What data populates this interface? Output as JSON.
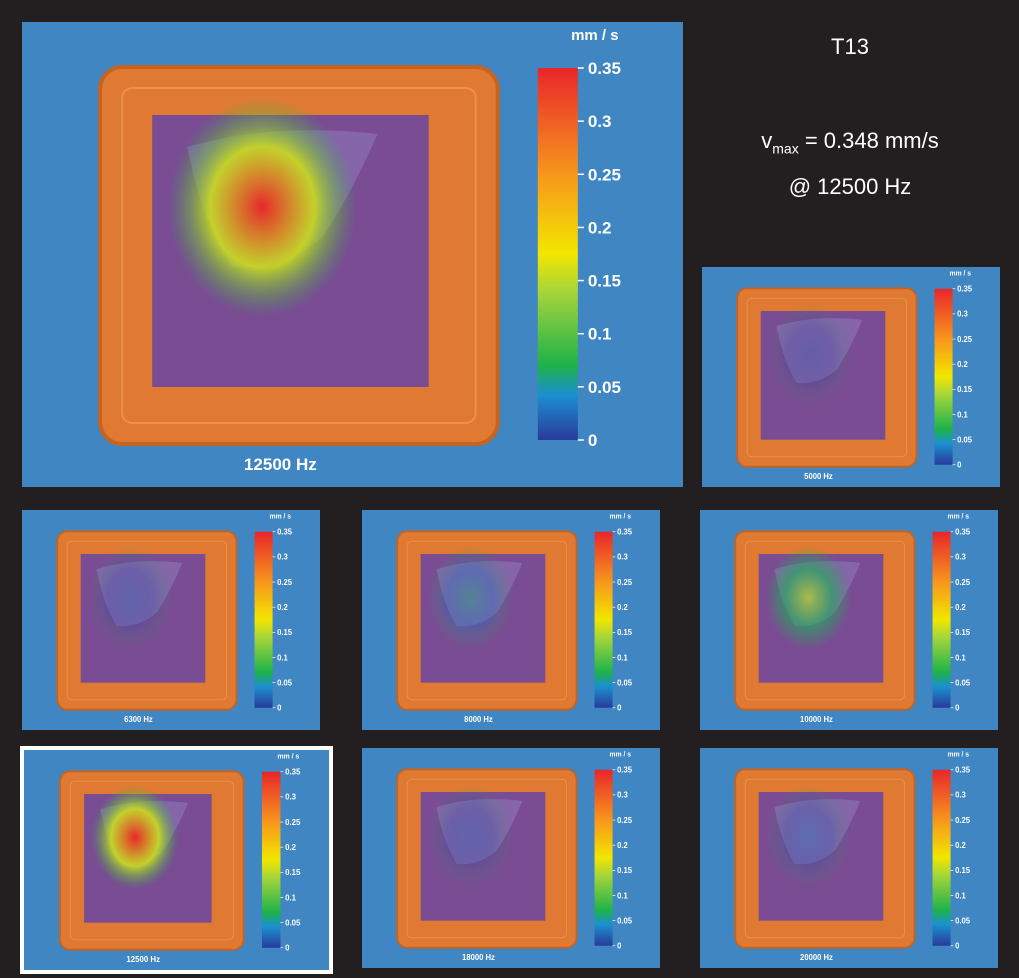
{
  "header": {
    "title": "T13",
    "vmax_symbol": "v",
    "vmax_subscript": "max",
    "vmax_value": "= 0.348 mm/s",
    "frequency": "@ 12500 Hz"
  },
  "colorbar": {
    "unit": "mm / s",
    "ylim": [
      0,
      0.35
    ],
    "ticks": [
      0,
      0.05,
      0.1,
      0.15,
      0.2,
      0.25,
      0.3,
      0.35
    ]
  },
  "panels": [
    {
      "label": "12500 Hz",
      "peak": 0.348
    },
    {
      "label": "5000 Hz",
      "peak": 0.01
    },
    {
      "label": "6300 Hz",
      "peak": 0.02
    },
    {
      "label": "8000 Hz",
      "peak": 0.06
    },
    {
      "label": "10000 Hz",
      "peak": 0.15
    },
    {
      "label": "12500 Hz",
      "peak": 0.348,
      "highlighted": true
    },
    {
      "label": "18000 Hz",
      "peak": 0.02
    },
    {
      "label": "20000 Hz",
      "peak": 0.03
    }
  ]
}
